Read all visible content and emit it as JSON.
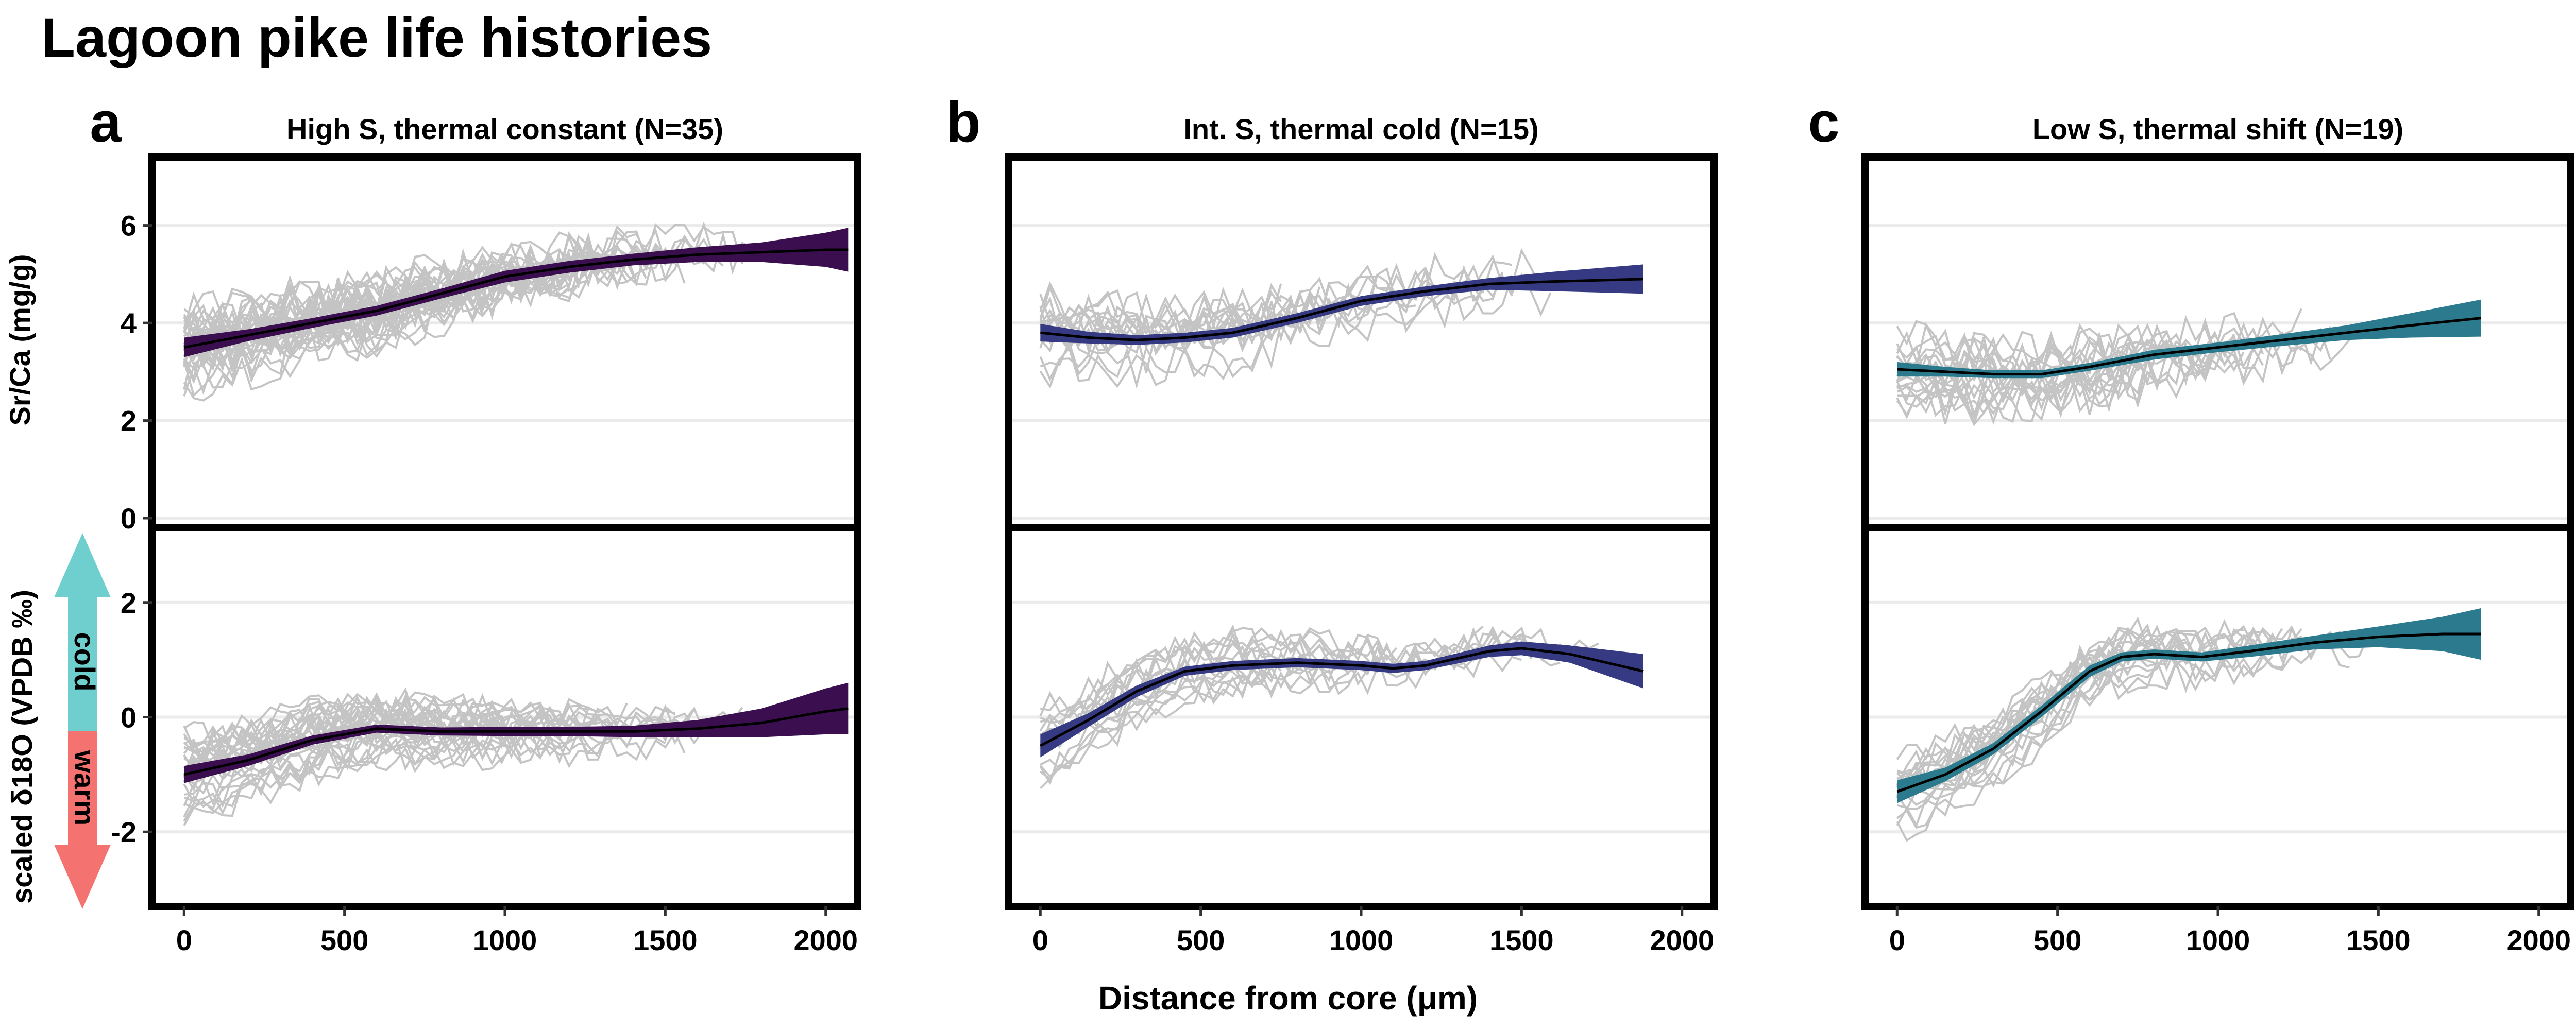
{
  "figure": {
    "title": "Lagoon pike life histories",
    "xlabel": "Distance from core (μm)",
    "ylabel_top": "Sr/Ca (mg/g)",
    "ylabel_bottom": "scaled δ18O (VPDB ‰)",
    "arrow_cold_label": "cold",
    "arrow_warm_label": "warm",
    "arrow_cold_color": "#6fcfcf",
    "arrow_warm_color": "#f47270"
  },
  "chart_data": [
    {
      "type": "line",
      "panel_letter": "a",
      "title": "High S, thermal constant (N=35)",
      "color": "#3b0f4f",
      "xlim": [
        -100,
        2100
      ],
      "x_ticks": [
        0,
        500,
        1000,
        1500,
        2000
      ],
      "top": {
        "ylabel": "Sr/Ca (mg/g)",
        "ylim": [
          -0.2,
          7.4
        ],
        "y_ticks": [
          0,
          2,
          4,
          6
        ],
        "x": [
          0,
          200,
          400,
          600,
          800,
          1000,
          1200,
          1400,
          1600,
          1800,
          2000,
          2070
        ],
        "fit": [
          3.5,
          3.75,
          4.0,
          4.25,
          4.6,
          4.95,
          5.15,
          5.3,
          5.4,
          5.45,
          5.5,
          5.5
        ],
        "band_halfwidth": [
          0.2,
          0.12,
          0.1,
          0.1,
          0.1,
          0.12,
          0.12,
          0.12,
          0.15,
          0.2,
          0.35,
          0.45
        ]
      },
      "bottom": {
        "ylabel": "scaled δ18O (VPDB ‰)",
        "ylim": [
          -3.3,
          3.3
        ],
        "y_ticks": [
          -2,
          0,
          2
        ],
        "x": [
          0,
          200,
          400,
          600,
          800,
          1000,
          1200,
          1400,
          1600,
          1800,
          2000,
          2070
        ],
        "fit": [
          -1.0,
          -0.75,
          -0.4,
          -0.2,
          -0.25,
          -0.25,
          -0.25,
          -0.25,
          -0.2,
          -0.1,
          0.1,
          0.15
        ],
        "band_halfwidth": [
          0.15,
          0.1,
          0.08,
          0.07,
          0.07,
          0.08,
          0.08,
          0.1,
          0.15,
          0.25,
          0.4,
          0.45
        ]
      },
      "n_individuals": 35,
      "individual_x_max": 1800
    },
    {
      "type": "line",
      "panel_letter": "b",
      "title": "Int. S, thermal cold (N=15)",
      "color": "#353a82",
      "xlim": [
        -100,
        2100
      ],
      "x_ticks": [
        0,
        500,
        1000,
        1500,
        2000
      ],
      "top": {
        "ylabel": "",
        "ylim": [
          -0.2,
          7.4
        ],
        "y_ticks": [],
        "x": [
          0,
          150,
          300,
          450,
          600,
          800,
          1000,
          1200,
          1400,
          1600,
          1880
        ],
        "fit": [
          3.8,
          3.7,
          3.65,
          3.7,
          3.8,
          4.1,
          4.45,
          4.65,
          4.8,
          4.85,
          4.9
        ],
        "band_halfwidth": [
          0.18,
          0.12,
          0.1,
          0.1,
          0.1,
          0.1,
          0.1,
          0.1,
          0.12,
          0.2,
          0.3
        ]
      },
      "bottom": {
        "ylabel": "",
        "ylim": [
          -3.3,
          3.3
        ],
        "y_ticks": [],
        "x": [
          0,
          150,
          300,
          450,
          600,
          800,
          1000,
          1100,
          1200,
          1400,
          1500,
          1650,
          1880
        ],
        "fit": [
          -0.5,
          -0.05,
          0.45,
          0.8,
          0.9,
          0.95,
          0.9,
          0.85,
          0.9,
          1.15,
          1.2,
          1.1,
          0.8
        ],
        "band_halfwidth": [
          0.2,
          0.12,
          0.1,
          0.08,
          0.08,
          0.08,
          0.08,
          0.08,
          0.08,
          0.1,
          0.12,
          0.15,
          0.3
        ]
      },
      "n_individuals": 15,
      "individual_x_max": 1880
    },
    {
      "type": "line",
      "panel_letter": "c",
      "title": "Low S, thermal shift (N=19)",
      "color": "#2b7a8e",
      "xlim": [
        -100,
        2100
      ],
      "x_ticks": [
        0,
        500,
        1000,
        1500,
        2000
      ],
      "top": {
        "ylabel": "",
        "ylim": [
          -0.2,
          7.4
        ],
        "y_ticks": [],
        "x": [
          0,
          150,
          300,
          450,
          600,
          800,
          1000,
          1200,
          1400,
          1600,
          1820
        ],
        "fit": [
          3.05,
          3.0,
          2.95,
          2.95,
          3.1,
          3.35,
          3.5,
          3.65,
          3.8,
          3.95,
          4.1
        ],
        "band_halfwidth": [
          0.15,
          0.1,
          0.08,
          0.08,
          0.08,
          0.1,
          0.1,
          0.12,
          0.15,
          0.25,
          0.38
        ]
      },
      "bottom": {
        "ylabel": "",
        "ylim": [
          -3.3,
          3.3
        ],
        "y_ticks": [],
        "x": [
          0,
          150,
          300,
          450,
          600,
          700,
          800,
          950,
          1100,
          1300,
          1500,
          1700,
          1820
        ],
        "fit": [
          -1.3,
          -1.0,
          -0.55,
          0.1,
          0.8,
          1.05,
          1.1,
          1.05,
          1.15,
          1.3,
          1.4,
          1.45,
          1.45
        ],
        "band_halfwidth": [
          0.2,
          0.12,
          0.1,
          0.1,
          0.1,
          0.08,
          0.08,
          0.08,
          0.1,
          0.12,
          0.18,
          0.3,
          0.45
        ]
      },
      "n_individuals": 19,
      "individual_x_max": 1500
    }
  ]
}
